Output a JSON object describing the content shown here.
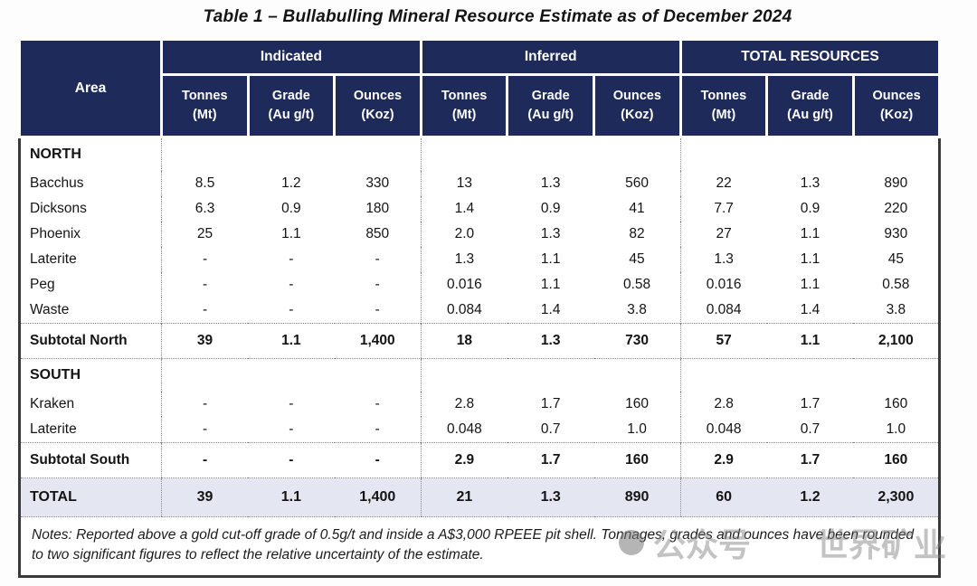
{
  "title": "Table 1 – Bullabulling Mineral Resource Estimate as of December 2024",
  "table": {
    "area_header": "Area",
    "groups": [
      {
        "label": "Indicated"
      },
      {
        "label": "Inferred"
      },
      {
        "label": "TOTAL RESOURCES"
      }
    ],
    "sub_headers": [
      "Tonnes\n(Mt)",
      "Grade\n(Au g/t)",
      "Ounces\n(Koz)",
      "Tonnes\n(Mt)",
      "Grade\n(Au g/t)",
      "Ounces\n(Koz)",
      "Tonnes\n(Mt)",
      "Grade\n(Au g/t)",
      "Ounces\n(Koz)"
    ],
    "rows": [
      {
        "type": "section",
        "label": "NORTH",
        "cells": [
          "",
          "",
          "",
          "",
          "",
          "",
          "",
          "",
          ""
        ]
      },
      {
        "type": "data",
        "label": "Bacchus",
        "cells": [
          "8.5",
          "1.2",
          "330",
          "13",
          "1.3",
          "560",
          "22",
          "1.3",
          "890"
        ]
      },
      {
        "type": "data",
        "label": "Dicksons",
        "cells": [
          "6.3",
          "0.9",
          "180",
          "1.4",
          "0.9",
          "41",
          "7.7",
          "0.9",
          "220"
        ]
      },
      {
        "type": "data",
        "label": "Phoenix",
        "cells": [
          "25",
          "1.1",
          "850",
          "2.0",
          "1.3",
          "82",
          "27",
          "1.1",
          "930"
        ]
      },
      {
        "type": "data",
        "label": "Laterite",
        "cells": [
          "-",
          "-",
          "-",
          "1.3",
          "1.1",
          "45",
          "1.3",
          "1.1",
          "45"
        ]
      },
      {
        "type": "data",
        "label": "Peg",
        "cells": [
          "-",
          "-",
          "-",
          "0.016",
          "1.1",
          "0.58",
          "0.016",
          "1.1",
          "0.58"
        ]
      },
      {
        "type": "data",
        "label": "Waste",
        "cells": [
          "-",
          "-",
          "-",
          "0.084",
          "1.4",
          "3.8",
          "0.084",
          "1.4",
          "3.8"
        ]
      },
      {
        "type": "subtotal",
        "label": "Subtotal North",
        "cells": [
          "39",
          "1.1",
          "1,400",
          "18",
          "1.3",
          "730",
          "57",
          "1.1",
          "2,100"
        ]
      },
      {
        "type": "section",
        "label": "SOUTH",
        "cells": [
          "",
          "",
          "",
          "",
          "",
          "",
          "",
          "",
          ""
        ]
      },
      {
        "type": "data",
        "label": "Kraken",
        "cells": [
          "-",
          "-",
          "-",
          "2.8",
          "1.7",
          "160",
          "2.8",
          "1.7",
          "160"
        ]
      },
      {
        "type": "data",
        "label": "Laterite",
        "cells": [
          "-",
          "-",
          "-",
          "0.048",
          "0.7",
          "1.0",
          "0.048",
          "0.7",
          "1.0"
        ]
      },
      {
        "type": "subtotal",
        "label": "Subtotal South",
        "cells": [
          "-",
          "-",
          "-",
          "2.9",
          "1.7",
          "160",
          "2.9",
          "1.7",
          "160"
        ]
      },
      {
        "type": "total",
        "label": "TOTAL",
        "cells": [
          "39",
          "1.1",
          "1,400",
          "21",
          "1.3",
          "890",
          "60",
          "1.2",
          "2,300"
        ]
      }
    ],
    "notes": "Notes: Reported above a gold cut-off grade of 0.5g/t and inside a A$3,000 RPEEE pit shell. Tonnages, grades and ounces have been rounded to two significant figures to reflect the relative uncertainty of the estimate."
  },
  "watermark": {
    "icon": "gray-dot-icon",
    "text_left": "公众号",
    "text_right": "世界矿业"
  },
  "colors": {
    "header_bg": "#1e2a5a",
    "header_text": "#ffffff",
    "total_row_bg": "#e4e6f1",
    "outer_border": "#3a3a3a",
    "dotted_line": "#8a8a8a"
  }
}
